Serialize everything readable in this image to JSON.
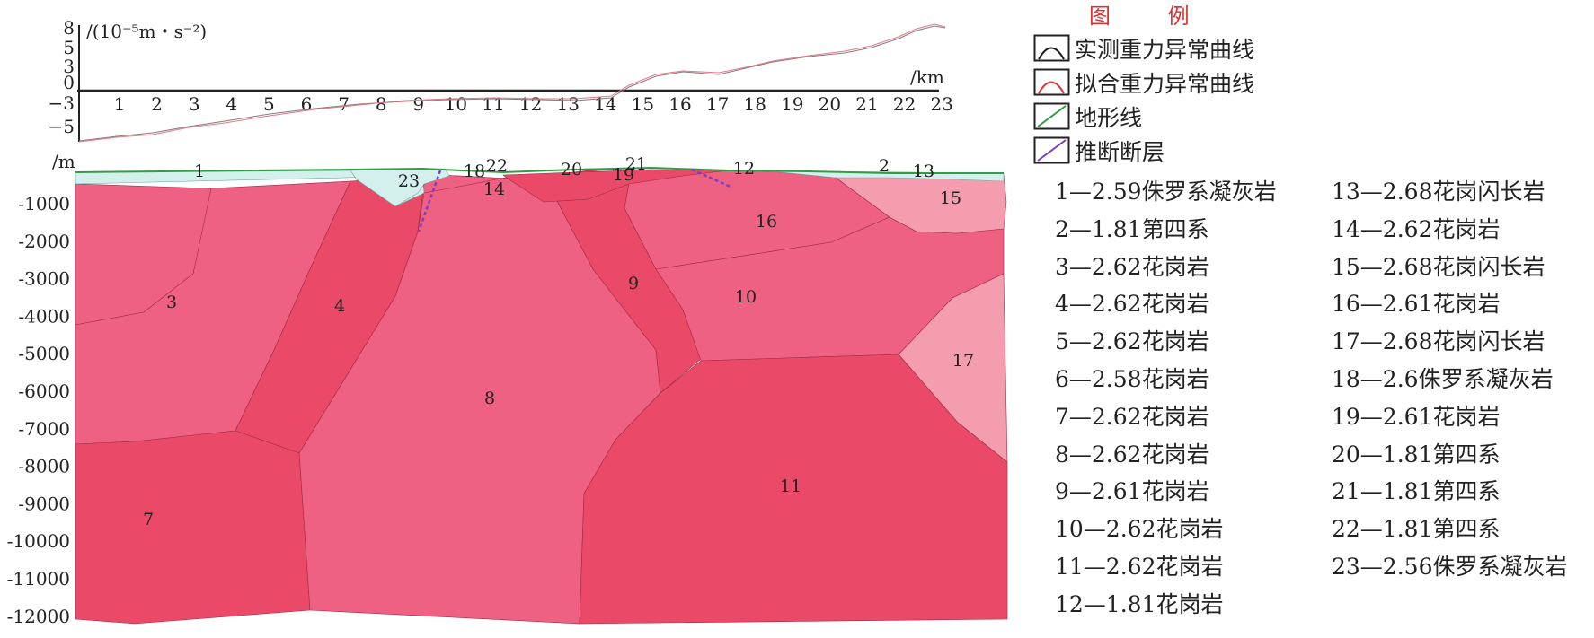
{
  "diagram": {
    "gravity_unit": "/(10⁻⁵m・s⁻²)",
    "gravity_ticks": [
      "8",
      "5",
      "3",
      "0",
      "−3",
      "−5"
    ],
    "km_unit": "/km",
    "km_ticks": [
      "1",
      "2",
      "3",
      "4",
      "5",
      "6",
      "7",
      "8",
      "9",
      "10",
      "11",
      "12",
      "13",
      "14",
      "15",
      "16",
      "17",
      "18",
      "19",
      "20",
      "21",
      "22",
      "23"
    ],
    "depth_unit": "/m",
    "depth_ticks": [
      "-1000",
      "-2000",
      "-3000",
      "-4000",
      "-5000",
      "-6000",
      "-7000",
      "-8000",
      "-9000",
      "-10000",
      "-11000",
      "-12000"
    ],
    "colors": {
      "block_a": "#ef6183",
      "block_b": "#ea4a67",
      "block_light": "#f49dae",
      "block_cyan": "#d4f0ec",
      "terrain": "#2f9e44",
      "fault": "#7b3fbf",
      "observed": "#1a1a1a",
      "fitted": "#e03131"
    },
    "block_labels": [
      "1",
      "2",
      "3",
      "4",
      "7",
      "8",
      "9",
      "10",
      "11",
      "12",
      "13",
      "14",
      "15",
      "16",
      "17",
      "18",
      "19",
      "20",
      "21",
      "22",
      "23"
    ]
  },
  "legend": {
    "title": "图  例",
    "symbols": [
      {
        "icon": "observed-curve-icon",
        "label": "实测重力异常曲线"
      },
      {
        "icon": "fitted-curve-icon",
        "label": "拟合重力异常曲线"
      },
      {
        "icon": "terrain-line-icon",
        "label": "地形线"
      },
      {
        "icon": "fault-line-icon",
        "label": "推断断层"
      }
    ],
    "left_items": [
      "1—2.59侏罗系凝灰岩",
      "2—1.81第四系",
      "3—2.62花岗岩",
      "4—2.62花岗岩",
      "5—2.62花岗岩",
      "6—2.58花岗岩",
      "7—2.62花岗岩",
      "8—2.62花岗岩",
      "9—2.61花岗岩",
      "10—2.62花岗岩",
      "11—2.62花岗岩",
      "12—1.81花岗岩"
    ],
    "right_items": [
      "13—2.68花岗闪长岩",
      "14—2.62花岗岩",
      "15—2.68花岗闪长岩",
      "16—2.61花岗岩",
      "17—2.68花岗闪长岩",
      "18—2.6侏罗系凝灰岩",
      "19—2.61花岗岩",
      "20—1.81第四系",
      "21—1.81第四系",
      "22—1.81第四系",
      "23—2.56侏罗系凝灰岩"
    ]
  }
}
